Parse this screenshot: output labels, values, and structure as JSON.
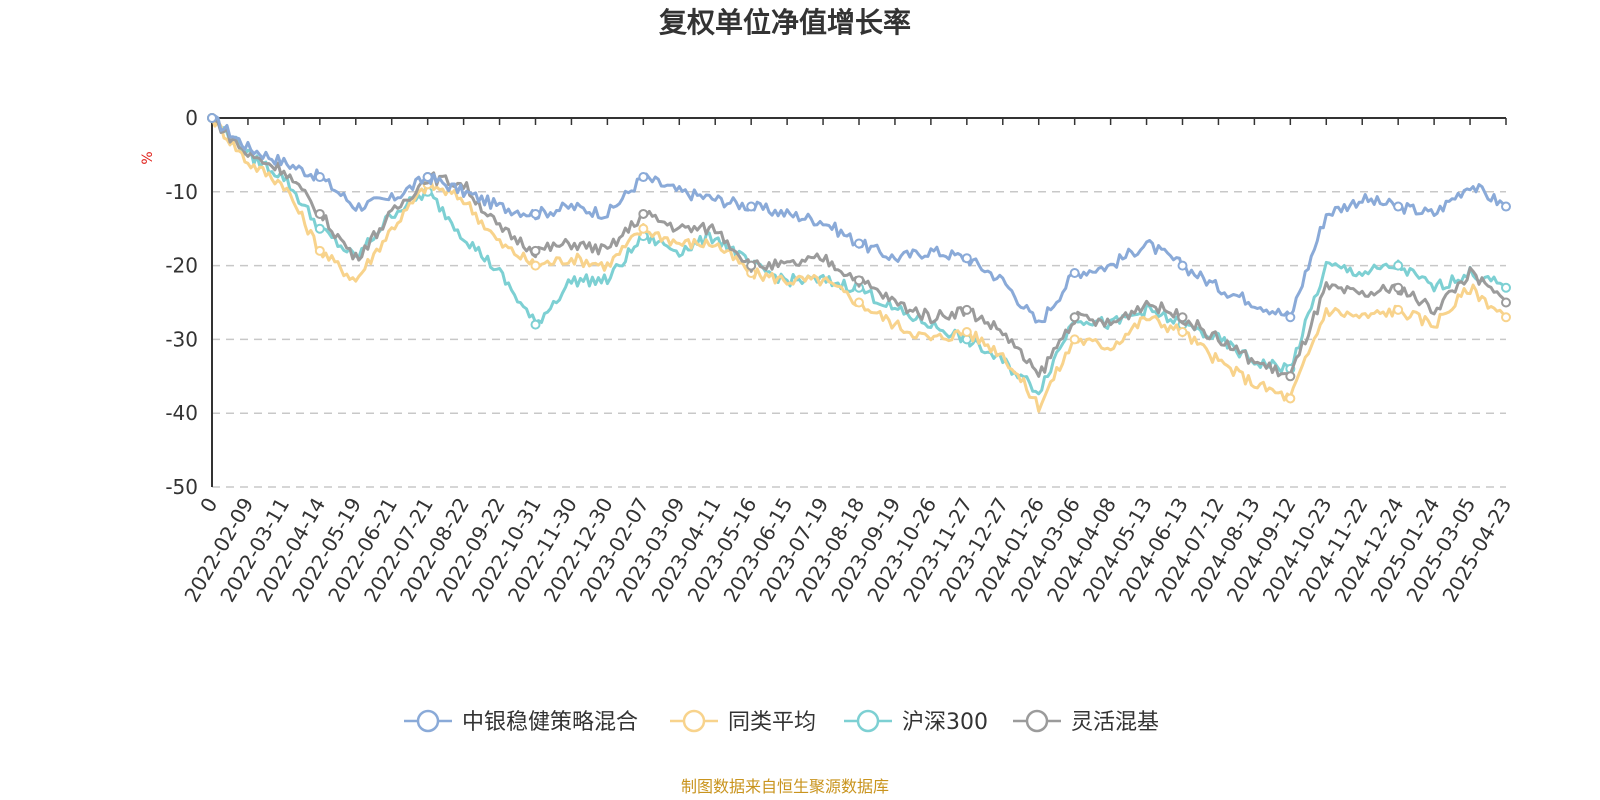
{
  "chart_data": {
    "type": "line",
    "title": "复权单位净值增长率",
    "ylabel": "%",
    "ylim": [
      -50,
      0
    ],
    "yticks": [
      "0",
      "-10",
      "-20",
      "-30",
      "-40",
      "-50"
    ],
    "grid": "horizontal dashed",
    "legend_position": "bottom",
    "source_note": "制图数据来自恒生聚源数据库",
    "x": [
      "0",
      "2022-02-09",
      "2022-03-11",
      "2022-04-14",
      "2022-05-19",
      "2022-06-21",
      "2022-07-21",
      "2022-08-22",
      "2022-09-22",
      "2022-10-31",
      "2022-11-30",
      "2022-12-30",
      "2023-02-07",
      "2023-03-09",
      "2023-04-11",
      "2023-05-16",
      "2023-06-15",
      "2023-07-19",
      "2023-08-18",
      "2023-09-19",
      "2023-10-26",
      "2023-11-27",
      "2023-12-27",
      "2024-01-26",
      "2024-03-06",
      "2024-04-08",
      "2024-05-13",
      "2024-06-13",
      "2024-07-12",
      "2024-08-13",
      "2024-09-12",
      "2024-10-23",
      "2024-11-22",
      "2024-12-24",
      "2025-01-24",
      "2025-03-05",
      "2025-04-23"
    ],
    "series": [
      {
        "name": "中银稳健策略混合",
        "color": "#8aaad8",
        "values": [
          0,
          -4,
          -6,
          -8,
          -12,
          -11,
          -8,
          -10,
          -12,
          -13,
          -12,
          -13,
          -8,
          -10,
          -11,
          -12,
          -13,
          -14,
          -17,
          -19,
          -18,
          -19,
          -22,
          -28,
          -21,
          -20,
          -17,
          -20,
          -23,
          -25,
          -27,
          -13,
          -11,
          -12,
          -13,
          -9,
          -12
        ]
      },
      {
        "name": "同类平均",
        "color": "#f8d38c",
        "values": [
          0,
          -6,
          -9,
          -18,
          -22,
          -15,
          -9,
          -11,
          -17,
          -20,
          -19,
          -20,
          -15,
          -17,
          -17,
          -21,
          -22,
          -22,
          -25,
          -28,
          -30,
          -29,
          -32,
          -39,
          -30,
          -31,
          -27,
          -29,
          -33,
          -36,
          -38,
          -26,
          -27,
          -26,
          -28,
          -23,
          -27
        ]
      },
      {
        "name": "沪深300",
        "color": "#7dd0d3",
        "values": [
          0,
          -5,
          -8,
          -15,
          -19,
          -13,
          -10,
          -16,
          -21,
          -28,
          -22,
          -22,
          -16,
          -18,
          -16,
          -20,
          -22,
          -22,
          -23,
          -26,
          -28,
          -30,
          -33,
          -37,
          -27,
          -28,
          -26,
          -28,
          -30,
          -33,
          -34,
          -20,
          -21,
          -20,
          -23,
          -21,
          -23
        ]
      },
      {
        "name": "灵活混基",
        "color": "#9b9b9b",
        "values": [
          0,
          -5,
          -7,
          -13,
          -19,
          -13,
          -8,
          -9,
          -15,
          -18,
          -17,
          -18,
          -13,
          -15,
          -15,
          -20,
          -20,
          -19,
          -22,
          -25,
          -27,
          -26,
          -29,
          -35,
          -27,
          -28,
          -25,
          -27,
          -30,
          -33,
          -35,
          -23,
          -24,
          -23,
          -26,
          -21,
          -25
        ]
      }
    ]
  }
}
